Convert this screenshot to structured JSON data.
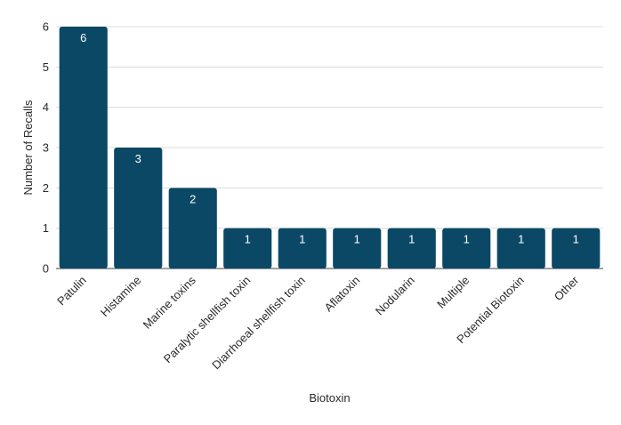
{
  "chart_data": {
    "type": "bar",
    "categories": [
      "Patulin",
      "Histamine",
      "Marine toxins",
      "Paralytic shellfish toxin",
      "Diarrhoeal shellfish toxin",
      "Aflatoxin",
      "Nodularin",
      "Multiple",
      "Potential Biotoxin",
      "Other"
    ],
    "values": [
      6,
      3,
      2,
      1,
      1,
      1,
      1,
      1,
      1,
      1
    ],
    "xlabel": "Biotoxin",
    "ylabel": "Number of Recalls",
    "ylim": [
      0,
      6
    ],
    "yticks": [
      0,
      1,
      2,
      3,
      4,
      5,
      6
    ],
    "grid": true,
    "data_labels": true,
    "bar_color": "#0b4866",
    "label_color": "#ffffff"
  }
}
